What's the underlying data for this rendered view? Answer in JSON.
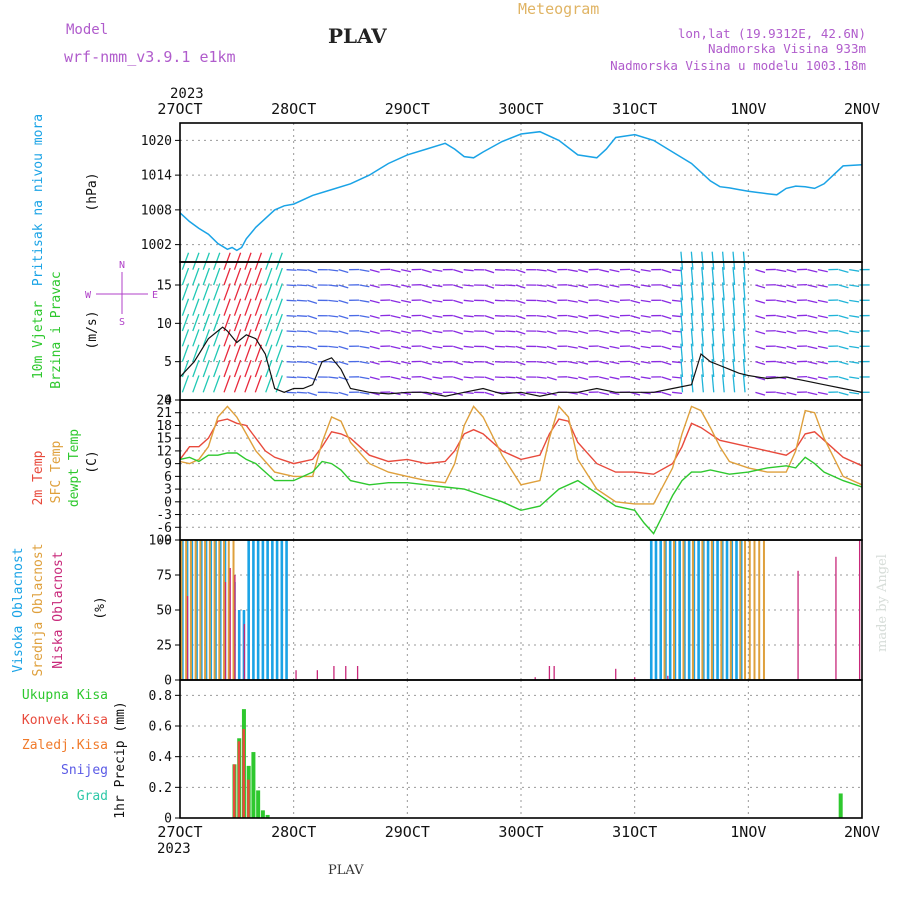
{
  "header": {
    "model_label": "Model",
    "model_name": "wrf-nmm_v3.9.1 e1km",
    "station": "PLAV",
    "meteogram": "Meteogram",
    "lonlat": "lon,lat (19.9312E, 42.6N)",
    "elevation": "Nadmorska Visina 933m",
    "model_elevation": "Nadmorska Visina u modelu 1003.18m",
    "footer_station": "PLAV",
    "watermark": "made by Angel",
    "year_top": "2023",
    "year_bottom": "2023"
  },
  "colors": {
    "pressure": "#1aa3e6",
    "temp2m": "#e84a3c",
    "sfc": "#dfa03c",
    "dewpt": "#2ec82e",
    "high_cloud": "#1aa3e6",
    "mid_cloud": "#dfa03c",
    "low_cloud": "#c8287a",
    "total_precip": "#2ec82e",
    "conv_precip": "#e84a3c",
    "ice_precip": "#f07a2a",
    "snow": "#5a5ae6",
    "hail": "#2ec8a8",
    "wind_axis": "#b040c8"
  },
  "chart_data": [
    {
      "type": "line",
      "id": "pressure",
      "ylabel": "Pritisak na nivou mora",
      "unit": "(hPa)",
      "ylim": [
        999,
        1023
      ],
      "yticks": [
        1002,
        1008,
        1014,
        1020
      ],
      "x_ticks": [
        "27OCT",
        "28OCT",
        "29OCT",
        "30OCT",
        "31OCT",
        "1NOV",
        "2NOV"
      ],
      "x_hours": [
        0,
        24,
        48,
        72,
        96,
        120,
        144
      ],
      "series": [
        {
          "x": [
            0,
            2,
            4,
            6,
            8,
            10,
            11,
            12,
            13,
            14,
            16,
            18,
            20,
            22,
            24,
            28,
            32,
            36,
            40,
            44,
            48,
            52,
            56,
            58,
            60,
            62,
            64,
            68,
            72,
            76,
            80,
            84,
            88,
            90,
            92,
            96,
            100,
            104,
            108,
            110,
            112,
            114,
            116,
            118,
            120,
            122,
            124,
            126,
            128,
            130,
            132,
            134,
            136,
            140,
            144
          ],
          "y": [
            1007.5,
            1006,
            1004.8,
            1003.8,
            1002.2,
            1001.2,
            1001.5,
            1001,
            1001.5,
            1003,
            1005,
            1006.5,
            1008,
            1008.7,
            1009,
            1010.5,
            1011.5,
            1012.5,
            1014,
            1016,
            1017.5,
            1018.5,
            1019.5,
            1018.5,
            1017.2,
            1017,
            1018,
            1019.8,
            1021.1,
            1021.5,
            1020,
            1017.5,
            1017,
            1018.5,
            1020.5,
            1021,
            1020,
            1018,
            1016,
            1014.5,
            1013,
            1012,
            1011.8,
            1011.5,
            1011.2,
            1011,
            1010.8,
            1010.6,
            1011.7,
            1012.1,
            1012,
            1011.7,
            1012.5,
            1015.6,
            1015.8
          ]
        }
      ]
    },
    {
      "type": "scatter",
      "id": "wind",
      "ylabel": "10m Vjetar Brzina i Pravac",
      "unit": "(m/s)",
      "ylim": [
        0,
        18
      ],
      "yticks": [
        0,
        5,
        10,
        15
      ],
      "compass": [
        "N",
        "W",
        "E",
        "S"
      ],
      "series": [
        {
          "name": "speed",
          "x": [
            0,
            3,
            6,
            9,
            10,
            12,
            14,
            16,
            18,
            20,
            22,
            24,
            26,
            28,
            30,
            32,
            34,
            36,
            40,
            44,
            48,
            52,
            56,
            60,
            64,
            68,
            72,
            76,
            80,
            84,
            88,
            92,
            96,
            100,
            104,
            108,
            110,
            112,
            114,
            116,
            118,
            120,
            124,
            128,
            132,
            136,
            140,
            144
          ],
          "y": [
            3,
            5,
            8,
            9.5,
            9,
            7.5,
            8.5,
            8,
            6,
            1.5,
            1,
            1.5,
            1.5,
            2,
            5,
            5.5,
            4,
            1.5,
            1,
            0.8,
            1,
            1,
            0.5,
            1,
            1.5,
            0.8,
            1,
            0.5,
            1,
            1,
            1.5,
            1,
            1,
            1,
            1.5,
            2,
            6,
            5,
            4.5,
            4,
            3.5,
            3.2,
            2.8,
            3,
            2.5,
            2,
            1.5,
            1
          ]
        }
      ]
    },
    {
      "type": "line",
      "id": "temperature",
      "ylabel": "2m Temp / SFC Temp / dewpt Temp",
      "unit": "(C)",
      "ylim": [
        -9,
        24
      ],
      "yticks": [
        -9,
        -6,
        -3,
        0,
        3,
        6,
        9,
        12,
        15,
        18,
        21,
        24
      ],
      "series": [
        {
          "name": "2m Temp",
          "x": [
            0,
            2,
            4,
            6,
            8,
            10,
            12,
            14,
            16,
            18,
            20,
            24,
            28,
            30,
            32,
            34,
            36,
            40,
            44,
            48,
            52,
            56,
            58,
            60,
            62,
            64,
            68,
            72,
            76,
            78,
            80,
            82,
            84,
            88,
            92,
            96,
            100,
            104,
            106,
            108,
            110,
            112,
            114,
            116,
            120,
            124,
            128,
            130,
            132,
            134,
            136,
            140,
            144
          ],
          "y": [
            10,
            13,
            13,
            15,
            19,
            19.5,
            18.5,
            18,
            15,
            12,
            10.5,
            9,
            10,
            13,
            16.5,
            16,
            15,
            11,
            9.5,
            10,
            9,
            9.5,
            12,
            16,
            17,
            16,
            12,
            10,
            11,
            16,
            19.5,
            19,
            14,
            9,
            7,
            7,
            6.5,
            9,
            13,
            18.5,
            17.5,
            16,
            14.5,
            14,
            13,
            12,
            11,
            12.5,
            16,
            16.5,
            14.5,
            10.5,
            8.5
          ]
        },
        {
          "name": "SFC Temp",
          "x": [
            0,
            2,
            4,
            6,
            8,
            10,
            12,
            14,
            16,
            18,
            20,
            24,
            28,
            30,
            32,
            34,
            36,
            40,
            44,
            48,
            52,
            56,
            58,
            60,
            62,
            64,
            68,
            72,
            76,
            78,
            80,
            82,
            84,
            88,
            92,
            96,
            100,
            104,
            106,
            108,
            110,
            112,
            114,
            116,
            120,
            124,
            128,
            130,
            132,
            134,
            136,
            140,
            144
          ],
          "y": [
            9.5,
            9,
            10,
            13,
            20,
            22.5,
            20,
            16,
            12,
            9.5,
            7,
            6,
            6,
            14,
            20,
            19,
            14,
            9,
            7,
            6,
            5,
            4.5,
            9,
            18,
            22.5,
            20,
            11,
            4,
            5,
            15,
            22.5,
            20,
            10,
            3,
            0,
            -0.5,
            -0.5,
            8,
            16,
            22.5,
            21.5,
            17.5,
            13,
            9.5,
            8,
            7,
            7,
            12,
            21.5,
            21,
            15,
            6,
            4
          ]
        },
        {
          "name": "dewpt Temp",
          "x": [
            0,
            2,
            4,
            6,
            8,
            10,
            12,
            14,
            16,
            18,
            20,
            24,
            28,
            30,
            32,
            34,
            36,
            40,
            44,
            48,
            52,
            56,
            60,
            64,
            68,
            72,
            76,
            80,
            84,
            88,
            92,
            96,
            98,
            100,
            102,
            104,
            106,
            108,
            110,
            112,
            116,
            120,
            124,
            128,
            130,
            132,
            134,
            136,
            140,
            144
          ],
          "y": [
            10,
            10.5,
            9.5,
            11,
            11,
            11.5,
            11.5,
            10,
            9,
            7,
            5,
            5,
            7,
            9.5,
            9,
            7.5,
            5,
            4,
            4.5,
            4.5,
            4,
            3.5,
            3,
            1.5,
            0,
            -2,
            -1,
            3,
            5,
            2,
            -1,
            -2,
            -5,
            -7.5,
            -3,
            1.5,
            5,
            7,
            7,
            7.5,
            6.5,
            7,
            8,
            8.5,
            8,
            10.5,
            9,
            7,
            5,
            3.5
          ]
        }
      ]
    },
    {
      "type": "bar",
      "id": "clouds",
      "ylabel": "Visoka Oblacnost / Srednja Oblacnost / Niska Oblacnost",
      "unit": "(%)",
      "ylim": [
        0,
        100
      ],
      "yticks": [
        0,
        25,
        50,
        75,
        100
      ],
      "series": [
        {
          "name": "Visoka Oblacnost",
          "x": [
            0.5,
            1.5,
            2.5,
            3.5,
            4.5,
            5.5,
            6.5,
            7.5,
            8.5,
            9.5,
            11.5,
            12.5,
            13.5,
            14.5,
            15.5,
            16.5,
            17.5,
            18.5,
            19.5,
            20.5,
            21.5,
            22.5,
            99.5,
            100.5,
            101.5,
            102.5,
            103.5,
            104.5,
            105.5,
            106.5,
            107.5,
            108.5,
            109.5,
            110.5,
            111.5,
            112.5,
            113.5,
            114.5,
            115.5,
            116.5,
            117.5,
            118.5
          ],
          "y": [
            100,
            100,
            100,
            100,
            100,
            100,
            100,
            100,
            100,
            100,
            70,
            50,
            50,
            100,
            100,
            100,
            100,
            100,
            100,
            100,
            100,
            100,
            100,
            100,
            100,
            100,
            100,
            100,
            100,
            100,
            100,
            100,
            100,
            100,
            100,
            100,
            100,
            100,
            100,
            100,
            100,
            100
          ]
        },
        {
          "name": "Srednja Oblacnost",
          "x": [
            0.3,
            1.3,
            2.3,
            3.3,
            4.3,
            5.3,
            6.3,
            7.3,
            8.3,
            9.3,
            10.3,
            11.3,
            102.3,
            104.3,
            106.3,
            108.3,
            110.3,
            112.3,
            114.3,
            116.3,
            118.3,
            119.3,
            120.3,
            121.3,
            122.3,
            123.3
          ],
          "y": [
            100,
            100,
            100,
            100,
            100,
            100,
            100,
            100,
            100,
            100,
            100,
            100,
            100,
            100,
            100,
            100,
            100,
            100,
            100,
            100,
            100,
            100,
            100,
            100,
            100,
            100
          ]
        },
        {
          "name": "Niska Oblacnost",
          "x": [
            1.6,
            9.6,
            10.6,
            11.6,
            13.6,
            24.5,
            29,
            32.5,
            35,
            37.5,
            75,
            78,
            79,
            92,
            96,
            103,
            130.5,
            138.5,
            143.5
          ],
          "y": [
            60,
            70,
            80,
            75,
            40,
            7,
            7,
            10,
            10,
            10,
            2,
            10,
            10,
            8,
            2,
            3,
            78,
            88,
            100
          ]
        }
      ]
    },
    {
      "type": "bar",
      "id": "precip",
      "ylabel": "1hr Precip (mm)",
      "ylim": [
        0,
        0.9
      ],
      "yticks": [
        0,
        0.2,
        0.4,
        0.6,
        0.8
      ],
      "legend": [
        "Ukupna Kisa",
        "Konvek.Kisa",
        "Zaledj.Kisa",
        "Snijeg",
        "Grad"
      ],
      "series": [
        {
          "name": "Ukupna Kisa",
          "x": [
            11.5,
            12.5,
            13.5,
            14.5,
            15.5,
            16.5,
            17.5,
            18.5,
            139.5
          ],
          "y": [
            0.35,
            0.52,
            0.71,
            0.34,
            0.43,
            0.18,
            0.05,
            0.02,
            0.16
          ]
        },
        {
          "name": "Konvek.Kisa",
          "x": [
            11.5,
            12.5,
            13.5,
            14.5
          ],
          "y": [
            0.35,
            0.5,
            0.58,
            0.25
          ]
        }
      ]
    }
  ]
}
